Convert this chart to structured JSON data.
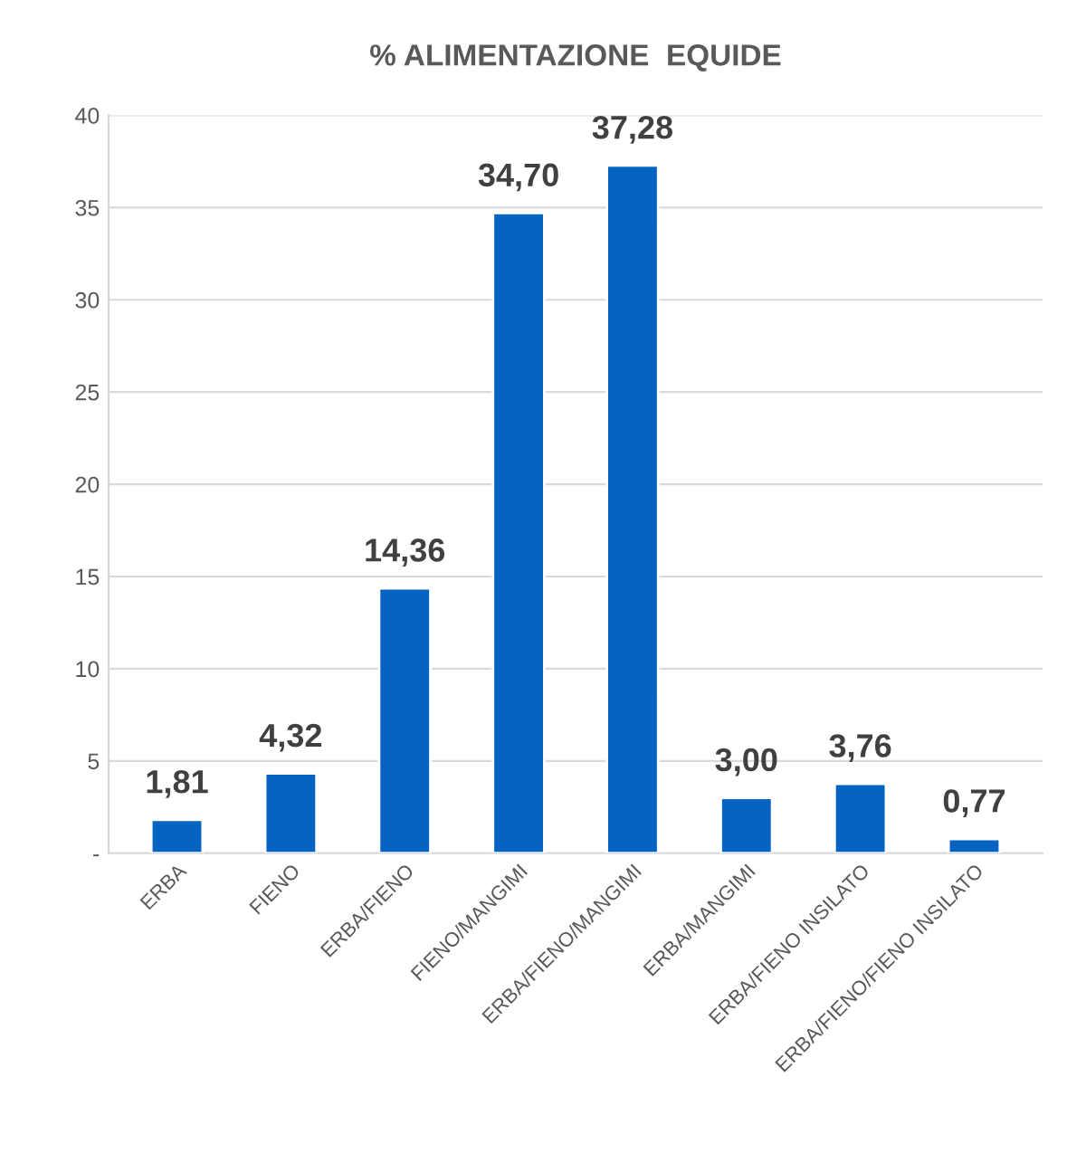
{
  "chart_data": {
    "type": "bar",
    "title": "% ALIMENTAZIONE  EQUIDE",
    "categories": [
      "ERBA",
      "FIENO",
      "ERBA/FIENO",
      "FIENO/MANGIMI",
      "ERBA/FIENO/MANGIMI",
      "ERBA/MANGIMI",
      "ERBA/FIENO INSILATO",
      "ERBA/FIENO/FIENO INSILATO"
    ],
    "values": [
      1.81,
      4.32,
      14.36,
      34.7,
      37.28,
      3.0,
      3.76,
      0.77
    ],
    "value_labels": [
      "1,81",
      "4,32",
      "14,36",
      "34,70",
      "37,28",
      "3,00",
      "3,76",
      "0,77"
    ],
    "color": "#0563c1",
    "ylim": [
      0,
      40
    ],
    "yticks": [
      {
        "value": 0,
        "label": "-"
      },
      5,
      10,
      15,
      20,
      25,
      30,
      35,
      40
    ],
    "grid": "y"
  }
}
